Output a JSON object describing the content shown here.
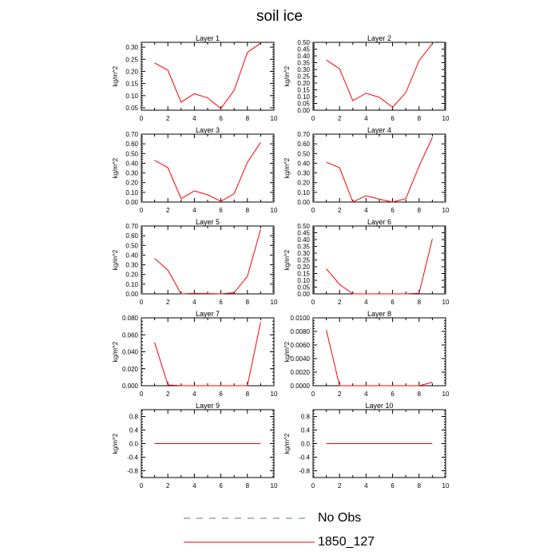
{
  "figure": {
    "title": "soil ice",
    "legend": [
      {
        "label": "No Obs",
        "style": "dashed",
        "color": "#5a6bb5"
      },
      {
        "label": "1850_127",
        "style": "solid",
        "color": "#ff0000"
      }
    ]
  },
  "chart_data": [
    {
      "type": "line",
      "title": "Layer 1",
      "ylabel": "kg/m^2",
      "xlim": [
        0,
        10
      ],
      "ylim": [
        0.04,
        0.32
      ],
      "xticks": [
        "0",
        "2",
        "4",
        "6",
        "8",
        "10"
      ],
      "yticks": [
        "0.05",
        "0.10",
        "0.15",
        "0.20",
        "0.25",
        "0.30"
      ],
      "series": [
        {
          "name": "1850_127",
          "color": "#ff0000",
          "x": [
            1,
            2,
            3,
            4,
            5,
            6,
            7,
            8,
            9
          ],
          "y": [
            0.235,
            0.205,
            0.073,
            0.108,
            0.091,
            0.047,
            0.122,
            0.278,
            0.317
          ]
        }
      ]
    },
    {
      "type": "line",
      "title": "Layer 2",
      "ylabel": "kg/m^2",
      "xlim": [
        0,
        10
      ],
      "ylim": [
        0,
        0.5
      ],
      "xticks": [
        "0",
        "2",
        "4",
        "6",
        "8",
        "10"
      ],
      "yticks": [
        "0.00",
        "0.05",
        "0.10",
        "0.15",
        "0.20",
        "0.25",
        "0.30",
        "0.35",
        "0.40",
        "0.45",
        "0.50"
      ],
      "series": [
        {
          "name": "1850_127",
          "color": "#ff0000",
          "x": [
            1,
            2,
            3,
            4,
            5,
            6,
            7,
            8,
            9
          ],
          "y": [
            0.37,
            0.305,
            0.07,
            0.125,
            0.095,
            0.022,
            0.13,
            0.365,
            0.49
          ]
        }
      ]
    },
    {
      "type": "line",
      "title": "Layer 3",
      "ylabel": "kg/m^2",
      "xlim": [
        0,
        10
      ],
      "ylim": [
        0,
        0.7
      ],
      "xticks": [
        "0",
        "2",
        "4",
        "6",
        "8",
        "10"
      ],
      "yticks": [
        "0.00",
        "0.10",
        "0.20",
        "0.30",
        "0.40",
        "0.50",
        "0.60",
        "0.70"
      ],
      "series": [
        {
          "name": "1850_127",
          "color": "#ff0000",
          "x": [
            1,
            2,
            3,
            4,
            5,
            6,
            7,
            8,
            9
          ],
          "y": [
            0.43,
            0.355,
            0.035,
            0.115,
            0.075,
            0.008,
            0.085,
            0.41,
            0.615
          ]
        }
      ]
    },
    {
      "type": "line",
      "title": "Layer 4",
      "ylabel": "kg/m^2",
      "xlim": [
        0,
        10
      ],
      "ylim": [
        0,
        0.7
      ],
      "xticks": [
        "0",
        "2",
        "4",
        "6",
        "8",
        "10"
      ],
      "yticks": [
        "0.00",
        "0.10",
        "0.20",
        "0.30",
        "0.40",
        "0.50",
        "0.60",
        "0.70"
      ],
      "series": [
        {
          "name": "1850_127",
          "color": "#ff0000",
          "x": [
            1,
            2,
            3,
            4,
            5,
            6,
            7,
            8,
            9
          ],
          "y": [
            0.41,
            0.355,
            0.0,
            0.065,
            0.03,
            0.0,
            0.035,
            0.37,
            0.665
          ]
        }
      ]
    },
    {
      "type": "line",
      "title": "Layer 5",
      "ylabel": "kg/m^2",
      "xlim": [
        0,
        10
      ],
      "ylim": [
        0,
        0.7
      ],
      "xticks": [
        "0",
        "2",
        "4",
        "6",
        "8",
        "10"
      ],
      "yticks": [
        "0.00",
        "0.10",
        "0.20",
        "0.30",
        "0.40",
        "0.50",
        "0.60",
        "0.70"
      ],
      "series": [
        {
          "name": "1850_127",
          "color": "#ff0000",
          "x": [
            1,
            2,
            3,
            4,
            5,
            6,
            7,
            8,
            9
          ],
          "y": [
            0.365,
            0.245,
            0.0,
            0.005,
            0.003,
            0.0,
            0.012,
            0.18,
            0.665
          ]
        }
      ]
    },
    {
      "type": "line",
      "title": "Layer 6",
      "ylabel": "kg/m^2",
      "xlim": [
        0,
        10
      ],
      "ylim": [
        0,
        0.5
      ],
      "xticks": [
        "0",
        "2",
        "4",
        "6",
        "8",
        "10"
      ],
      "yticks": [
        "0.00",
        "0.05",
        "0.10",
        "0.15",
        "0.20",
        "0.25",
        "0.30",
        "0.35",
        "0.40",
        "0.45",
        "0.50"
      ],
      "series": [
        {
          "name": "1850_127",
          "color": "#ff0000",
          "x": [
            1,
            2,
            3,
            4,
            5,
            6,
            7,
            8,
            9
          ],
          "y": [
            0.185,
            0.07,
            0.0,
            0.0,
            0.0,
            0.0,
            0.0,
            0.005,
            0.405
          ]
        }
      ]
    },
    {
      "type": "line",
      "title": "Layer 7",
      "ylabel": "kg/m^2",
      "xlim": [
        0,
        10
      ],
      "ylim": [
        0,
        0.08
      ],
      "xticks": [
        "0",
        "2",
        "4",
        "6",
        "8",
        "10"
      ],
      "yticks": [
        "0.000",
        "0.020",
        "0.040",
        "0.060",
        "0.080"
      ],
      "series": [
        {
          "name": "1850_127",
          "color": "#ff0000",
          "x": [
            1,
            2,
            3,
            4,
            5,
            6,
            7,
            8,
            9
          ],
          "y": [
            0.051,
            0.001,
            0.0,
            0.0,
            0.0,
            0.0,
            0.0,
            0.0,
            0.075
          ]
        }
      ]
    },
    {
      "type": "line",
      "title": "Layer 8",
      "ylabel": "kg/m^2",
      "xlim": [
        0,
        10
      ],
      "ylim": [
        0,
        0.01
      ],
      "xticks": [
        "0",
        "2",
        "4",
        "6",
        "8",
        "10"
      ],
      "yticks": [
        "0.0000",
        "0.0020",
        "0.0040",
        "0.0060",
        "0.0080",
        "0.0100"
      ],
      "series": [
        {
          "name": "1850_127",
          "color": "#ff0000",
          "x": [
            1,
            2,
            3,
            4,
            5,
            6,
            7,
            8,
            9
          ],
          "y": [
            0.0082,
            0.0,
            0.0,
            0.0,
            0.0,
            0.0,
            0.0,
            0.0,
            0.0005
          ]
        }
      ]
    },
    {
      "type": "line",
      "title": "Layer 9",
      "ylabel": "kg/m^2",
      "xlim": [
        0,
        10
      ],
      "ylim": [
        -1,
        1
      ],
      "xticks": [
        "0",
        "2",
        "4",
        "6",
        "8",
        "10"
      ],
      "yticks": [
        "-0.8",
        "-0.4",
        "0.0",
        "0.4",
        "0.8"
      ],
      "series": [
        {
          "name": "1850_127",
          "color": "#ff0000",
          "x": [
            1,
            2,
            3,
            4,
            5,
            6,
            7,
            8,
            9
          ],
          "y": [
            0,
            0,
            0,
            0,
            0,
            0,
            0,
            0,
            0
          ]
        }
      ]
    },
    {
      "type": "line",
      "title": "Layer 10",
      "ylabel": "kg/m^2",
      "xlim": [
        0,
        10
      ],
      "ylim": [
        -1,
        1
      ],
      "xticks": [
        "0",
        "2",
        "4",
        "6",
        "8",
        "10"
      ],
      "yticks": [
        "-0.8",
        "-0.4",
        "0.0",
        "0.4",
        "0.8"
      ],
      "series": [
        {
          "name": "1850_127",
          "color": "#ff0000",
          "x": [
            1,
            2,
            3,
            4,
            5,
            6,
            7,
            8,
            9
          ],
          "y": [
            0,
            0,
            0,
            0,
            0,
            0,
            0,
            0,
            0
          ]
        }
      ]
    }
  ]
}
